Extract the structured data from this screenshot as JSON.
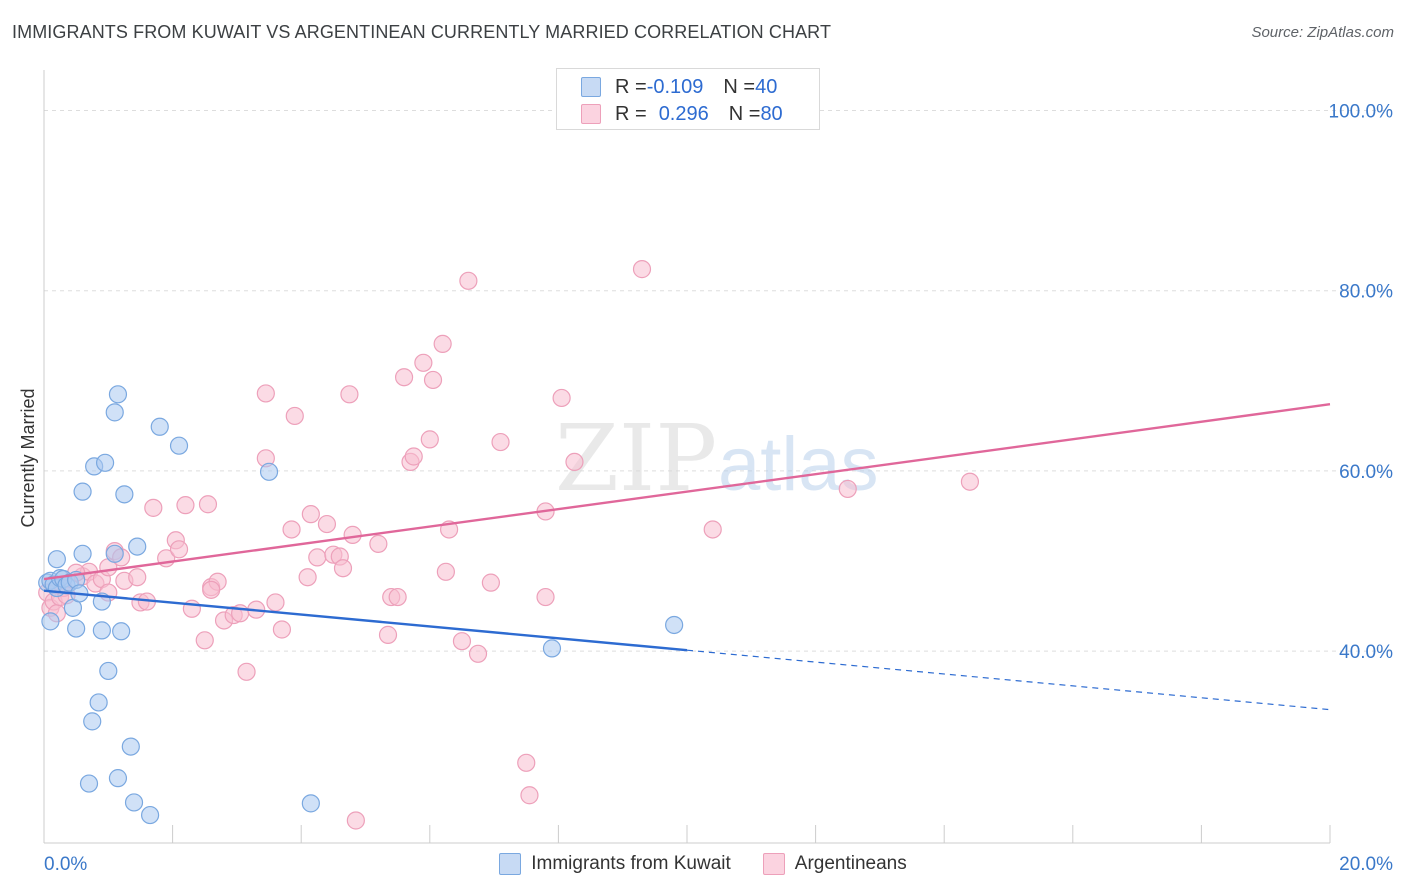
{
  "title": "IMMIGRANTS FROM KUWAIT VS ARGENTINEAN CURRENTLY MARRIED CORRELATION CHART",
  "source": "Source: ZipAtlas.com",
  "watermark": {
    "zip": "ZIP",
    "atlas": "atlas"
  },
  "legend_top": [
    {
      "r_label": "R = ",
      "r_value": "-0.109",
      "n_label": "N = ",
      "n_value": "40"
    },
    {
      "r_label": "R = ",
      "r_value": "0.296",
      "n_label": "N = ",
      "n_value": "80"
    }
  ],
  "legend_bottom": [
    "Immigrants from Kuwait",
    "Argentineans"
  ],
  "colors": {
    "blue_fill": "#aac8f0",
    "blue_stroke": "#7aa8e0",
    "blue_line": "#2d6bd1",
    "pink_fill": "#f7bdd0",
    "pink_stroke": "#eda0ba",
    "pink_line": "#e0679a",
    "axis_text": "#3a78c9",
    "grid": "#dddddd"
  },
  "chart_data": {
    "type": "scatter",
    "title": "IMMIGRANTS FROM KUWAIT VS ARGENTINEAN CURRENTLY MARRIED CORRELATION CHART",
    "xlabel": "",
    "ylabel": "Currently Married",
    "xlim": [
      0,
      20
    ],
    "ylim": [
      18.7,
      104.5
    ],
    "x_tick_labels": [
      "0.0%",
      "20.0%"
    ],
    "y_ticks": [
      40,
      60,
      80,
      100
    ],
    "y_tick_labels": [
      "40.0%",
      "60.0%",
      "80.0%",
      "100.0%"
    ],
    "grid": true,
    "series": [
      {
        "name": "Immigrants from Kuwait",
        "color": "#aac8f0",
        "points": [
          [
            0.05,
            47.6
          ],
          [
            0.1,
            47.8
          ],
          [
            0.15,
            47.4
          ],
          [
            0.2,
            47.0
          ],
          [
            0.25,
            48.1
          ],
          [
            0.3,
            48.0
          ],
          [
            0.35,
            47.3
          ],
          [
            0.4,
            47.6
          ],
          [
            0.5,
            47.9
          ],
          [
            0.2,
            50.2
          ],
          [
            0.6,
            50.8
          ],
          [
            0.45,
            44.8
          ],
          [
            0.55,
            46.4
          ],
          [
            0.5,
            42.5
          ],
          [
            0.9,
            42.3
          ],
          [
            1.2,
            42.2
          ],
          [
            0.9,
            45.5
          ],
          [
            1.0,
            37.8
          ],
          [
            0.85,
            34.3
          ],
          [
            0.75,
            32.2
          ],
          [
            1.35,
            29.4
          ],
          [
            1.15,
            25.9
          ],
          [
            0.7,
            25.3
          ],
          [
            1.4,
            23.2
          ],
          [
            1.65,
            21.8
          ],
          [
            4.15,
            23.1
          ],
          [
            0.6,
            57.7
          ],
          [
            0.78,
            60.5
          ],
          [
            0.95,
            60.9
          ],
          [
            1.25,
            57.4
          ],
          [
            1.1,
            50.8
          ],
          [
            1.45,
            51.6
          ],
          [
            1.1,
            66.5
          ],
          [
            1.15,
            68.5
          ],
          [
            1.8,
            64.9
          ],
          [
            2.1,
            62.8
          ],
          [
            3.5,
            59.9
          ],
          [
            7.9,
            40.3
          ],
          [
            9.8,
            42.9
          ],
          [
            0.1,
            43.3
          ]
        ]
      },
      {
        "name": "Argentineans",
        "color": "#f7bdd0",
        "points": [
          [
            0.05,
            46.5
          ],
          [
            0.1,
            44.8
          ],
          [
            0.15,
            45.5
          ],
          [
            0.2,
            44.2
          ],
          [
            0.25,
            46.0
          ],
          [
            0.3,
            47.0
          ],
          [
            0.35,
            46.2
          ],
          [
            0.6,
            48.3
          ],
          [
            0.7,
            48.8
          ],
          [
            0.8,
            47.5
          ],
          [
            0.9,
            48.0
          ],
          [
            1.0,
            49.3
          ],
          [
            1.1,
            51.1
          ],
          [
            1.2,
            50.4
          ],
          [
            1.25,
            47.8
          ],
          [
            1.45,
            48.2
          ],
          [
            1.5,
            45.4
          ],
          [
            1.6,
            45.5
          ],
          [
            1.7,
            55.9
          ],
          [
            1.9,
            50.3
          ],
          [
            2.05,
            52.3
          ],
          [
            2.1,
            51.3
          ],
          [
            2.2,
            56.2
          ],
          [
            2.3,
            44.7
          ],
          [
            2.5,
            41.2
          ],
          [
            2.55,
            56.3
          ],
          [
            2.6,
            47.1
          ],
          [
            2.7,
            47.7
          ],
          [
            2.8,
            43.4
          ],
          [
            2.95,
            44.0
          ],
          [
            3.05,
            44.2
          ],
          [
            3.15,
            37.7
          ],
          [
            3.3,
            44.6
          ],
          [
            3.45,
            61.4
          ],
          [
            3.45,
            68.6
          ],
          [
            3.6,
            45.4
          ],
          [
            3.7,
            42.4
          ],
          [
            3.85,
            53.5
          ],
          [
            3.9,
            66.1
          ],
          [
            4.1,
            48.2
          ],
          [
            4.15,
            55.2
          ],
          [
            4.25,
            50.4
          ],
          [
            4.4,
            54.1
          ],
          [
            4.5,
            50.7
          ],
          [
            4.6,
            50.5
          ],
          [
            4.65,
            49.2
          ],
          [
            4.75,
            68.5
          ],
          [
            4.8,
            52.9
          ],
          [
            4.85,
            21.2
          ],
          [
            5.2,
            51.9
          ],
          [
            5.35,
            41.8
          ],
          [
            5.4,
            46.0
          ],
          [
            5.5,
            46.0
          ],
          [
            5.6,
            70.4
          ],
          [
            5.7,
            61.0
          ],
          [
            5.75,
            61.6
          ],
          [
            5.9,
            72.0
          ],
          [
            6.0,
            63.5
          ],
          [
            6.05,
            70.1
          ],
          [
            6.2,
            74.1
          ],
          [
            6.25,
            48.8
          ],
          [
            6.3,
            53.5
          ],
          [
            6.5,
            41.1
          ],
          [
            6.6,
            81.1
          ],
          [
            6.75,
            39.7
          ],
          [
            6.95,
            47.6
          ],
          [
            7.1,
            63.2
          ],
          [
            7.5,
            27.6
          ],
          [
            7.55,
            24.0
          ],
          [
            7.8,
            46.0
          ],
          [
            7.8,
            55.5
          ],
          [
            8.05,
            68.1
          ],
          [
            8.25,
            61.0
          ],
          [
            9.3,
            82.4
          ],
          [
            10.4,
            53.5
          ],
          [
            12.5,
            58.0
          ],
          [
            14.4,
            58.8
          ],
          [
            0.5,
            48.7
          ],
          [
            1.0,
            46.5
          ],
          [
            2.6,
            46.8
          ]
        ]
      }
    ],
    "trend_lines": [
      {
        "series": "Immigrants from Kuwait",
        "x0": 0,
        "y0": 46.7,
        "x1": 10,
        "y1": 40.1,
        "dashed_to_x": 20,
        "dashed_to_y": 33.5
      },
      {
        "series": "Argentineans",
        "x0": 0,
        "y0": 48.0,
        "x1": 20,
        "y1": 67.4
      }
    ]
  }
}
